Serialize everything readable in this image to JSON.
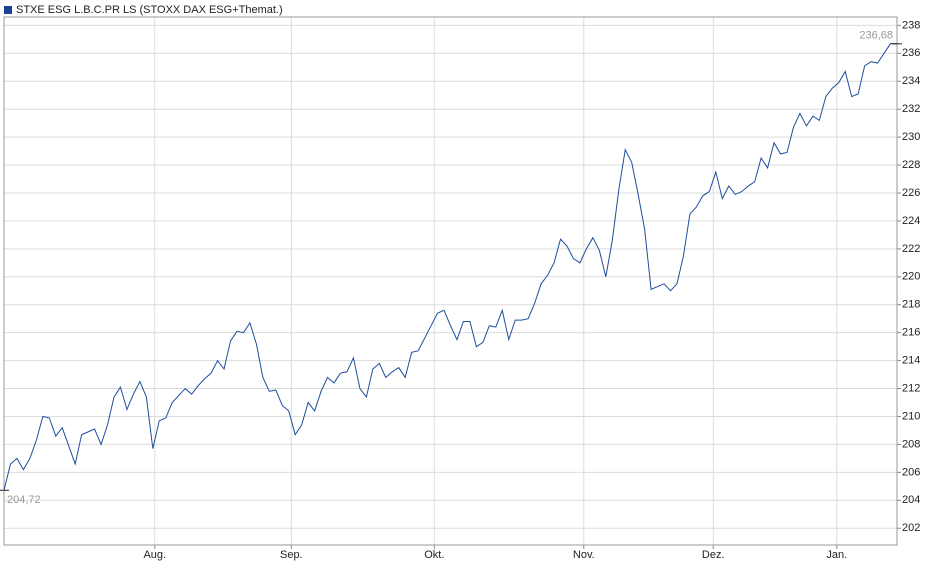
{
  "chart_data": {
    "type": "line",
    "series": [
      {
        "name": "STXE ESG L.B.C.PR LS (STOXX DAX ESG+Themat.)",
        "color": "#1f4e9c",
        "values": [
          204.72,
          206.6,
          207.0,
          206.2,
          207.0,
          208.3,
          210.0,
          209.9,
          208.6,
          209.2,
          207.9,
          206.6,
          208.7,
          208.9,
          209.1,
          208.0,
          209.4,
          211.4,
          212.1,
          210.5,
          211.6,
          212.5,
          211.4,
          207.7,
          209.7,
          209.9,
          211.0,
          211.5,
          212.0,
          211.6,
          212.2,
          212.7,
          213.1,
          214.0,
          213.4,
          215.4,
          216.1,
          216.0,
          216.7,
          215.2,
          212.8,
          211.8,
          211.9,
          210.8,
          210.4,
          208.7,
          209.4,
          211.0,
          210.4,
          211.8,
          212.8,
          212.4,
          213.1,
          213.2,
          214.2,
          212.0,
          211.4,
          213.4,
          213.8,
          212.8,
          213.2,
          213.5,
          212.8,
          214.6,
          214.7,
          215.6,
          216.5,
          217.4,
          217.6,
          216.5,
          215.5,
          216.8,
          216.8,
          215.0,
          215.3,
          216.5,
          216.4,
          217.6,
          215.5,
          216.9,
          216.9,
          217.0,
          218.1,
          219.5,
          220.1,
          221.0,
          222.7,
          222.2,
          221.3,
          221.0,
          222.0,
          222.8,
          221.9,
          220.0,
          222.6,
          226.2,
          229.1,
          228.2,
          225.9,
          223.4,
          219.1,
          219.3,
          219.5,
          219.0,
          219.5,
          221.5,
          224.5,
          225.0,
          225.8,
          226.1,
          227.5,
          225.6,
          226.5,
          225.9,
          226.1,
          226.5,
          226.8,
          228.5,
          227.8,
          229.6,
          228.8,
          228.9,
          230.7,
          231.7,
          230.8,
          231.5,
          231.2,
          232.9,
          233.5,
          233.9,
          234.7,
          232.9,
          233.1,
          235.1,
          235.4,
          235.3,
          236.0,
          236.7,
          236.68
        ],
        "value_labels": [
          "204,72",
          null,
          null,
          null,
          null,
          null,
          null,
          null,
          null,
          null,
          null,
          null,
          null,
          null,
          null,
          null,
          null,
          null,
          null,
          null,
          null,
          null,
          null,
          null,
          null,
          null,
          null,
          null,
          null,
          null,
          null,
          null,
          null,
          null,
          null,
          null,
          null,
          null,
          null,
          null,
          null,
          null,
          null,
          null,
          null,
          null,
          null,
          null,
          null,
          null,
          null,
          null,
          null,
          null,
          null,
          null,
          null,
          null,
          null,
          null,
          null,
          null,
          null,
          null,
          null,
          null,
          null,
          null,
          null,
          null,
          null,
          null,
          null,
          null,
          null,
          null,
          null,
          null,
          null,
          null,
          null,
          null,
          null,
          null,
          null,
          null,
          null,
          null,
          null,
          null,
          null,
          null,
          null,
          null,
          null,
          null,
          null,
          null,
          null,
          null,
          null,
          null,
          null,
          null,
          null,
          null,
          null,
          null,
          null,
          null,
          null,
          null,
          null,
          null,
          null,
          null,
          null,
          null,
          null,
          null,
          null,
          null,
          null,
          null,
          null,
          null,
          null,
          null,
          null,
          null,
          null,
          null,
          null,
          null,
          null,
          null,
          null,
          null,
          "236,68"
        ]
      }
    ],
    "xlim": [
      0,
      138
    ],
    "xticks": [
      {
        "value": 23.3,
        "label": "Aug."
      },
      {
        "value": 44.4,
        "label": "Sep."
      },
      {
        "value": 66.5,
        "label": "Okt."
      },
      {
        "value": 89.6,
        "label": "Nov."
      },
      {
        "value": 109.6,
        "label": "Dez."
      },
      {
        "value": 128.7,
        "label": "Jan."
      }
    ],
    "ylim": [
      200.8,
      238.6
    ],
    "yticks": [
      202,
      204,
      206,
      208,
      210,
      212,
      214,
      216,
      218,
      220,
      222,
      224,
      226,
      228,
      230,
      232,
      234,
      236,
      238
    ],
    "grid": true
  }
}
